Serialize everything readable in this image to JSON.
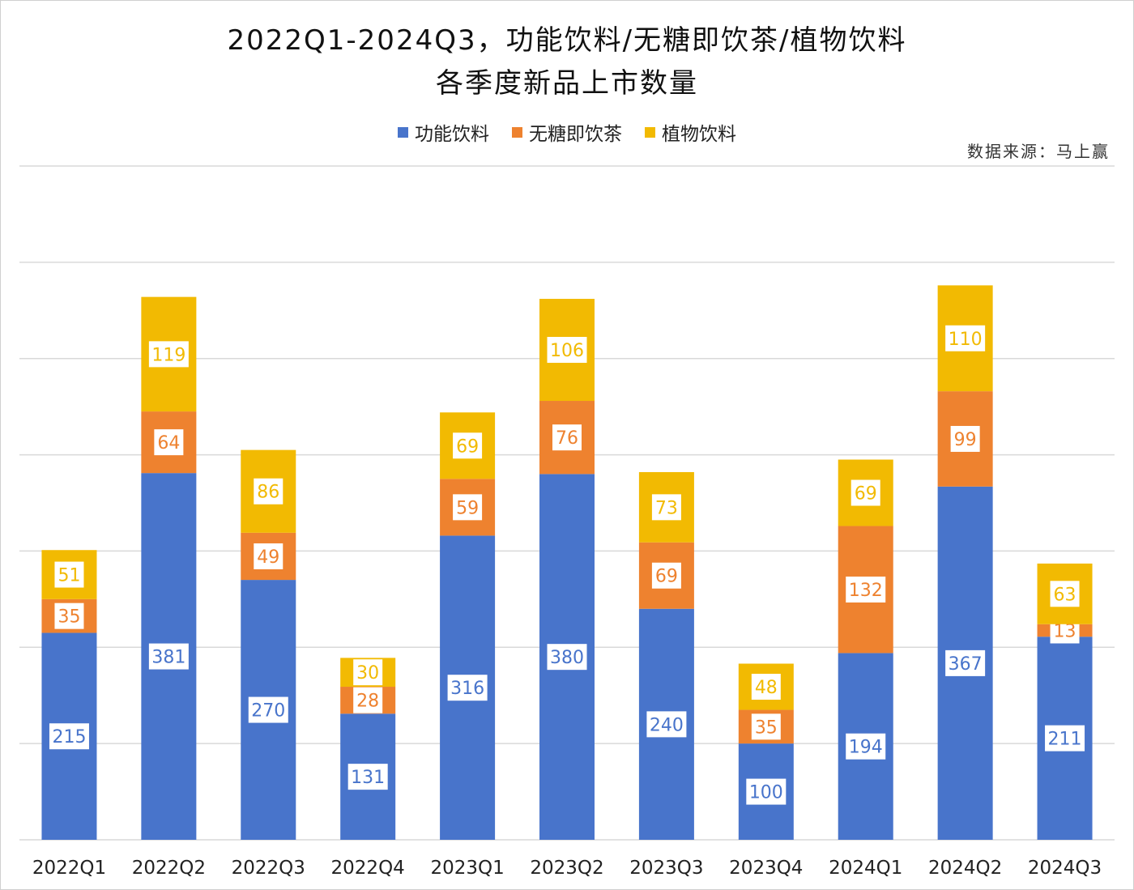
{
  "chart_data": {
    "type": "bar",
    "stacked": true,
    "title": "2022Q1-2024Q3，功能饮料/无糖即饮茶/植物饮料",
    "subtitle": "各季度新品上市数量",
    "source": "数据来源：马上赢",
    "xlabel": "",
    "ylabel": "",
    "ylim": [
      0,
      700
    ],
    "grid": true,
    "legend_position": "top",
    "categories": [
      "2022Q1",
      "2022Q2",
      "2022Q3",
      "2022Q4",
      "2023Q1",
      "2023Q2",
      "2023Q3",
      "2023Q4",
      "2024Q1",
      "2024Q2",
      "2024Q3"
    ],
    "series": [
      {
        "name": "功能饮料",
        "color": "#4874CB",
        "values": [
          215,
          381,
          270,
          131,
          316,
          380,
          240,
          100,
          194,
          367,
          211
        ]
      },
      {
        "name": "无糖即饮茶",
        "color": "#EE822F",
        "values": [
          35,
          64,
          49,
          28,
          59,
          76,
          69,
          35,
          132,
          99,
          13
        ]
      },
      {
        "name": "植物饮料",
        "color": "#F2BA02",
        "values": [
          51,
          119,
          86,
          30,
          69,
          106,
          73,
          48,
          69,
          110,
          63
        ]
      }
    ]
  }
}
